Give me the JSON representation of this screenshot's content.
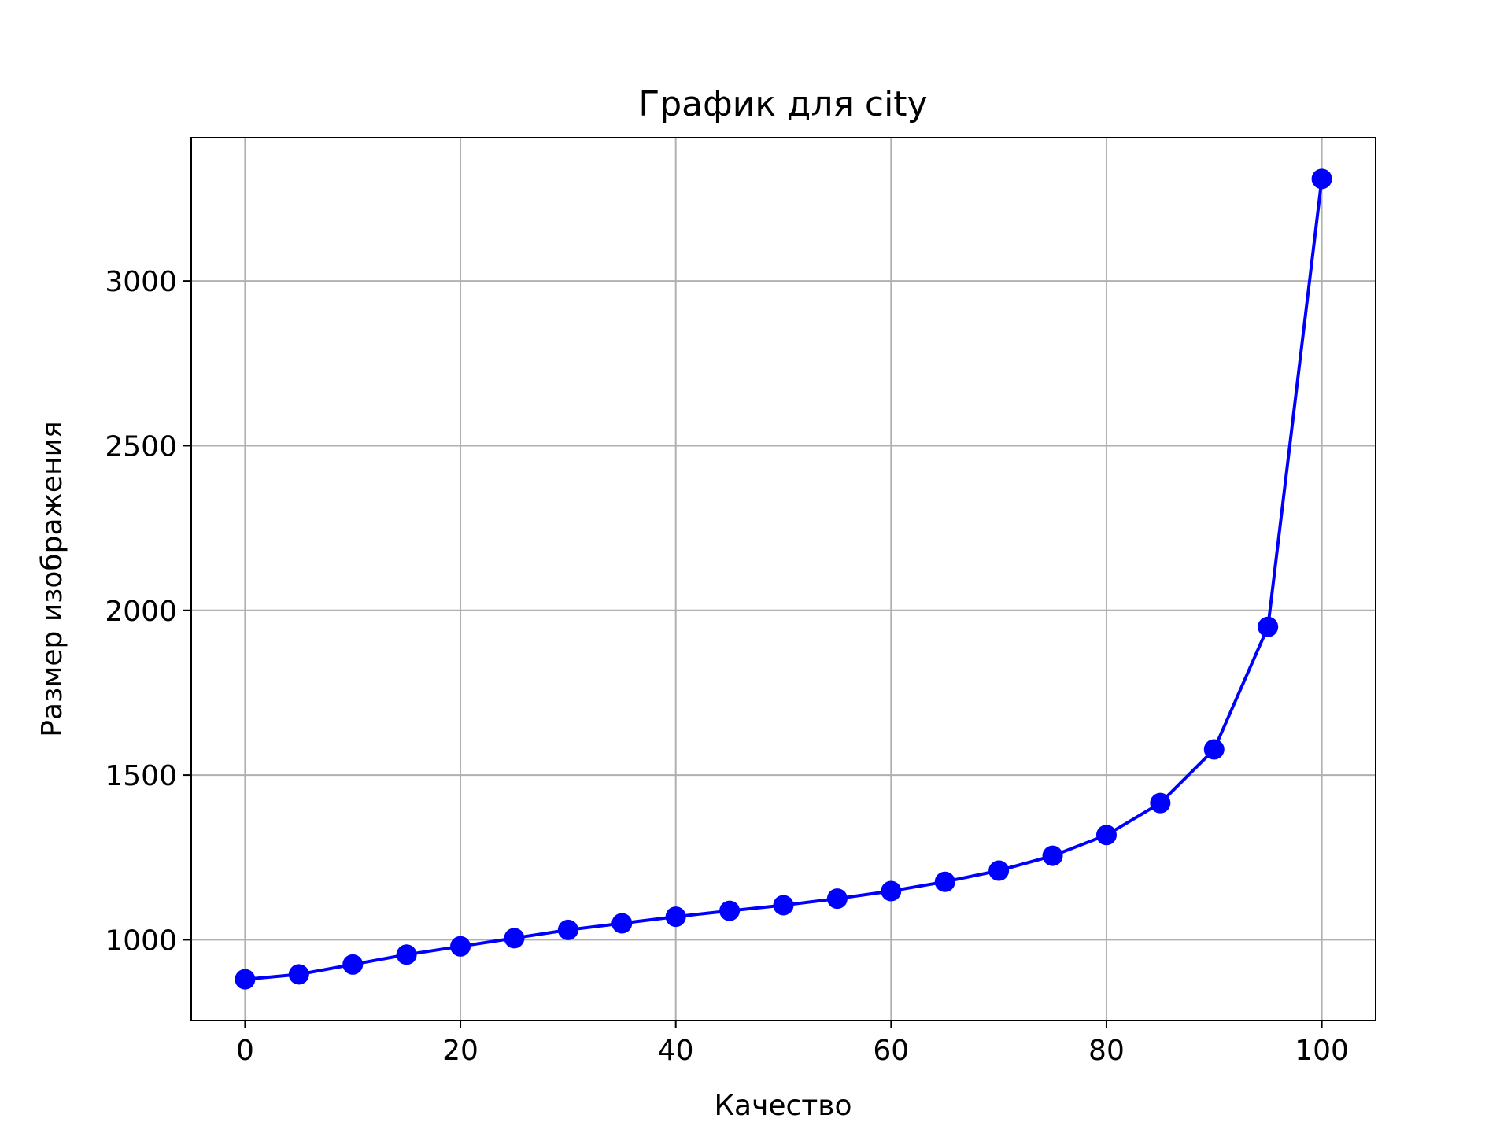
{
  "colors": {
    "line": "#0000ff",
    "grid": "#b0b0b0",
    "axes": "#000000",
    "background": "#ffffff"
  },
  "chart_data": {
    "type": "line",
    "title": "График для city",
    "xlabel": "Качество",
    "ylabel": "Размер изображения",
    "xlim": [
      -5,
      105
    ],
    "ylim": [
      755,
      3435
    ],
    "xticks": [
      0,
      20,
      40,
      60,
      80,
      100
    ],
    "yticks": [
      1000,
      1500,
      2000,
      2500,
      3000
    ],
    "grid": true,
    "marker": "circle",
    "series": [
      {
        "x": [
          0,
          5,
          10,
          15,
          20,
          25,
          30,
          35,
          40,
          45,
          50,
          55,
          60,
          65,
          70,
          75,
          80,
          85,
          90,
          95,
          100
        ],
        "y": [
          880,
          895,
          925,
          955,
          980,
          1005,
          1030,
          1050,
          1070,
          1088,
          1105,
          1125,
          1148,
          1176,
          1210,
          1255,
          1318,
          1415,
          1578,
          1950,
          3310
        ]
      }
    ]
  }
}
